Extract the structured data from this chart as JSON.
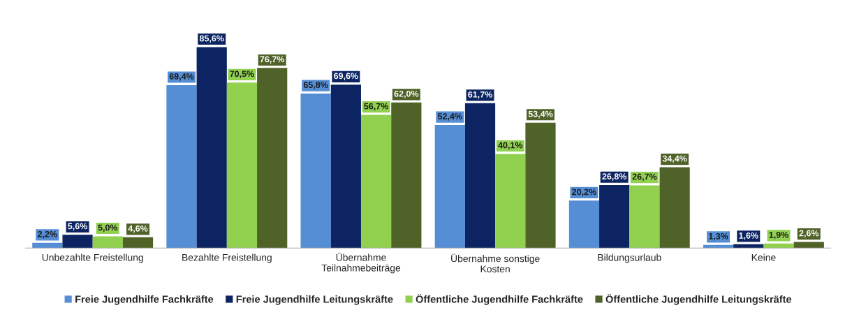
{
  "chart_data": {
    "type": "bar",
    "categories": [
      "Unbezahlte Freistellung",
      "Bezahlte Freistellung",
      "Übernahme\nTeilnahmebeiträge",
      "Übernahme sonstige\nKosten",
      "Bildungsurlaub",
      "Keine"
    ],
    "series": [
      {
        "name": "Freie Jugendhilfe Fachkräfte",
        "color": "#558ed5",
        "values": [
          2.2,
          69.4,
          65.8,
          52.4,
          20.2,
          1.3
        ],
        "value_labels": [
          "2,2%",
          "69,4%",
          "65,8%",
          "52,4%",
          "20,2%",
          "1,3%"
        ]
      },
      {
        "name": "Freie Jugendhilfe Leitungskräfte",
        "color": "#0c2461",
        "values": [
          5.6,
          85.6,
          69.6,
          61.7,
          26.8,
          1.6
        ],
        "value_labels": [
          "5,6%",
          "85,6%",
          "69,6%",
          "61,7%",
          "26,8%",
          "1,6%"
        ]
      },
      {
        "name": "Öffentliche Jugendhilfe Fachkräfte",
        "color": "#92d050",
        "values": [
          5.0,
          70.5,
          56.7,
          40.1,
          26.7,
          1.9
        ],
        "value_labels": [
          "5,0%",
          "70,5%",
          "56,7%",
          "40,1%",
          "26,7%",
          "1,9%"
        ]
      },
      {
        "name": "Öffentliche Jugendhilfe Leitungskräfte",
        "color": "#4f6228",
        "values": [
          4.6,
          76.7,
          62.0,
          53.4,
          34.4,
          2.6
        ],
        "value_labels": [
          "4,6%",
          "76,7%",
          "62,0%",
          "53,4%",
          "34,4%",
          "2,6%"
        ]
      }
    ],
    "legend": "bottom",
    "tick_labels": "x"
  }
}
